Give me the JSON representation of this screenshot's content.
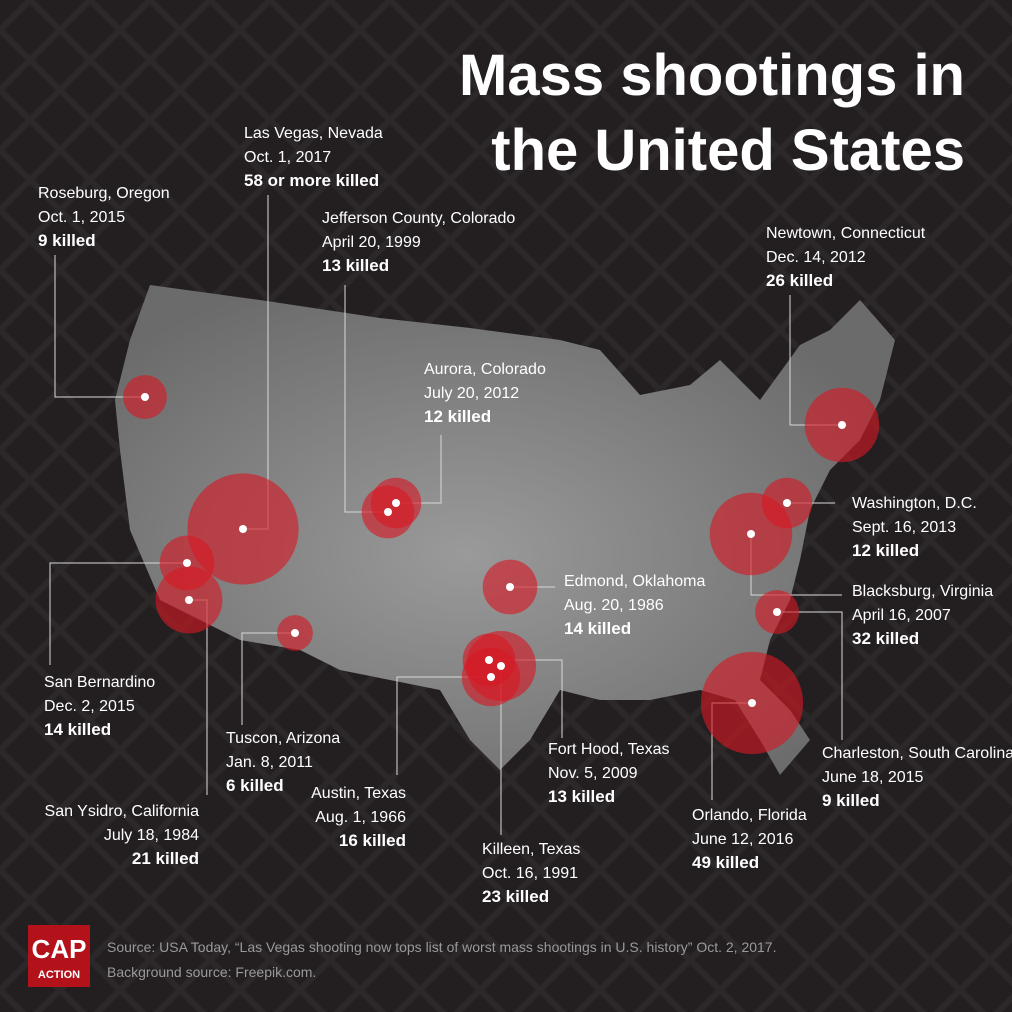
{
  "title": [
    "Mass shootings in",
    "the United States"
  ],
  "events": [
    {
      "place": "Roseburg, Oregon",
      "date": "Oct. 1, 2015",
      "killed": 9,
      "killed_label": "9 killed"
    },
    {
      "place": "Las Vegas, Nevada",
      "date": "Oct. 1, 2017",
      "killed": 58,
      "killed_label": "58 or more killed"
    },
    {
      "place": "Jefferson County, Colorado",
      "date": "April 20, 1999",
      "killed": 13,
      "killed_label": "13 killed"
    },
    {
      "place": "Aurora, Colorado",
      "date": "July 20, 2012",
      "killed": 12,
      "killed_label": "12 killed"
    },
    {
      "place": "Newtown, Connecticut",
      "date": "Dec. 14, 2012",
      "killed": 26,
      "killed_label": "26 killed"
    },
    {
      "place": "Washington, D.C.",
      "date": "Sept. 16, 2013",
      "killed": 12,
      "killed_label": "12 killed"
    },
    {
      "place": "Blacksburg, Virginia",
      "date": "April 16, 2007",
      "killed": 32,
      "killed_label": "32 killed"
    },
    {
      "place": "Charleston, South Carolina",
      "date": "June 18, 2015",
      "killed": 9,
      "killed_label": "9 killed"
    },
    {
      "place": "Orlando, Florida",
      "date": "June 12, 2016",
      "killed": 49,
      "killed_label": "49 killed"
    },
    {
      "place": "Edmond, Oklahoma",
      "date": "Aug. 20, 1986",
      "killed": 14,
      "killed_label": "14 killed"
    },
    {
      "place": "Fort Hood, Texas",
      "date": "Nov. 5, 2009",
      "killed": 13,
      "killed_label": "13 killed"
    },
    {
      "place": "Killeen, Texas",
      "date": "Oct. 16, 1991",
      "killed": 23,
      "killed_label": "23 killed"
    },
    {
      "place": "Austin, Texas",
      "date": "Aug. 1, 1966",
      "killed": 16,
      "killed_label": "16 killed"
    },
    {
      "place": "Tuscon, Arizona",
      "date": "Jan. 8, 2011",
      "killed": 6,
      "killed_label": "6 killed"
    },
    {
      "place": "San Ysidro, California",
      "date": "July 18, 1984",
      "killed": 21,
      "killed_label": "21 killed"
    },
    {
      "place": "San Bernardino",
      "date": "Dec. 2, 2015",
      "killed": 14,
      "killed_label": "14 killed"
    }
  ],
  "logo": {
    "name": "CAP",
    "sub": "ACTION"
  },
  "source": [
    "Source: USA Today, “Las Vegas shooting now tops list of worst mass shootings in U.S. history” Oct. 2, 2017.",
    "Background source: Freepik.com."
  ]
}
